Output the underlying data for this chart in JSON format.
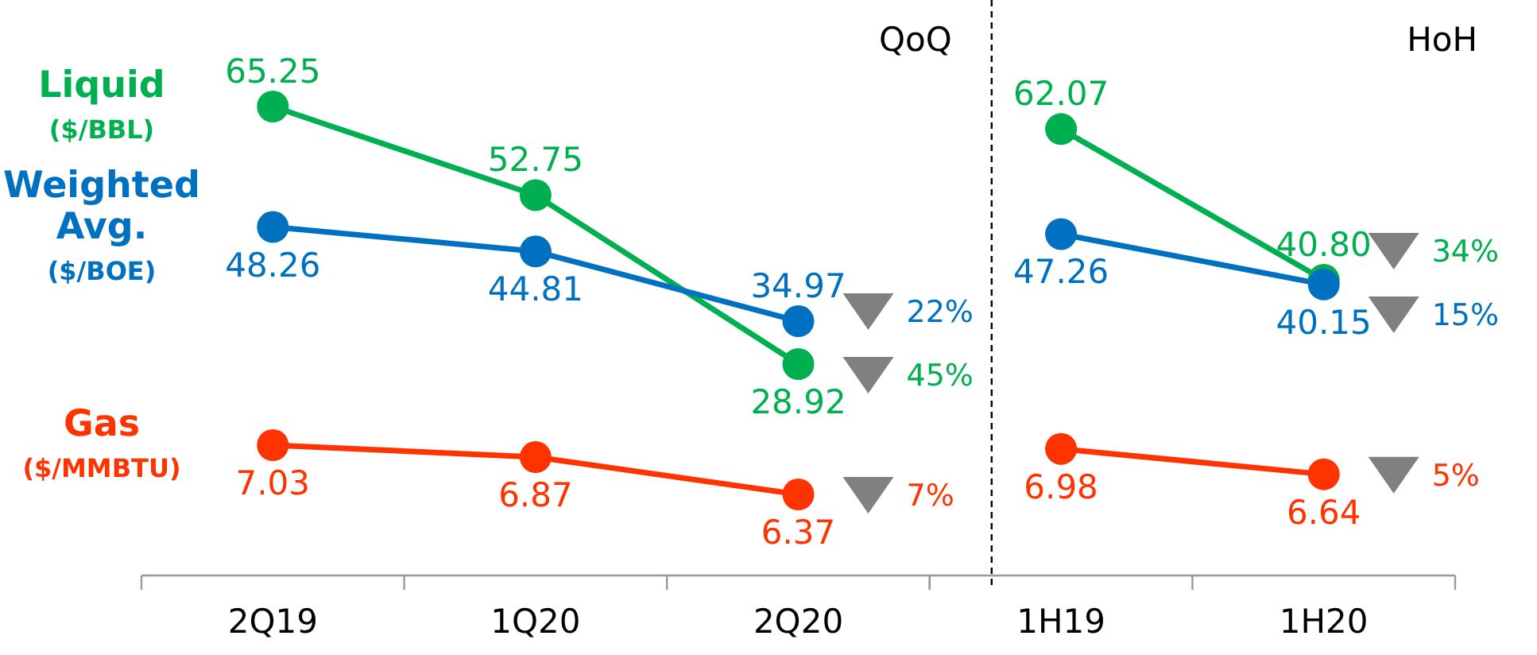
{
  "chart_data": [
    {
      "type": "line",
      "title": "QoQ",
      "categories": [
        null,
        null,
        null
      ],
      "tick_labels": false,
      "marker": "circle",
      "legend": "left",
      "series": [
        {
          "name": "Liquid\n($/BBL)",
          "color": "#00b050",
          "values": [
            65.25,
            52.75,
            28.92
          ],
          "value_labels": [
            "65.25",
            "52.75",
            "28.92"
          ]
        },
        {
          "name": "Weighted\nAvg.\n($/BOE)",
          "color": "#0070c0",
          "values": [
            48.26,
            44.81,
            34.97
          ],
          "value_labels": [
            "48.26",
            "44.81",
            "34.97"
          ]
        }
      ],
      "annotations": [
        "45%",
        "22%"
      ]
    },
    {
      "type": "line",
      "categories": [
        "2Q19",
        "1Q20",
        "2Q20"
      ],
      "tick_labels": "x",
      "marker": "circle",
      "legend": "left",
      "series": [
        {
          "name": "Gas\n($/MMBTU)",
          "color": "#ff3300",
          "values": [
            7.03,
            6.87,
            6.37
          ],
          "value_labels": [
            "7.03",
            "6.87",
            "6.37"
          ]
        }
      ],
      "annotations": [
        "7%"
      ]
    },
    {
      "type": "line",
      "title": "HoH",
      "categories": [
        null,
        null
      ],
      "tick_labels": false,
      "marker": "circle",
      "series": [
        {
          "color": "#00b050",
          "values": [
            62.07,
            40.8
          ],
          "value_labels": [
            "62.07",
            "40.80"
          ]
        },
        {
          "color": "#0070c0",
          "values": [
            47.26,
            40.15
          ],
          "value_labels": [
            "47.26",
            "40.15"
          ]
        }
      ],
      "annotations": [
        "34%",
        "15%"
      ]
    },
    {
      "type": "line",
      "categories": [
        "1H19",
        "1H20"
      ],
      "tick_labels": "x",
      "marker": "circle",
      "series": [
        {
          "color": "#ff3300",
          "values": [
            6.98,
            6.64
          ],
          "value_labels": [
            "6.98",
            "6.64"
          ]
        }
      ],
      "annotations": [
        "5%"
      ]
    }
  ]
}
